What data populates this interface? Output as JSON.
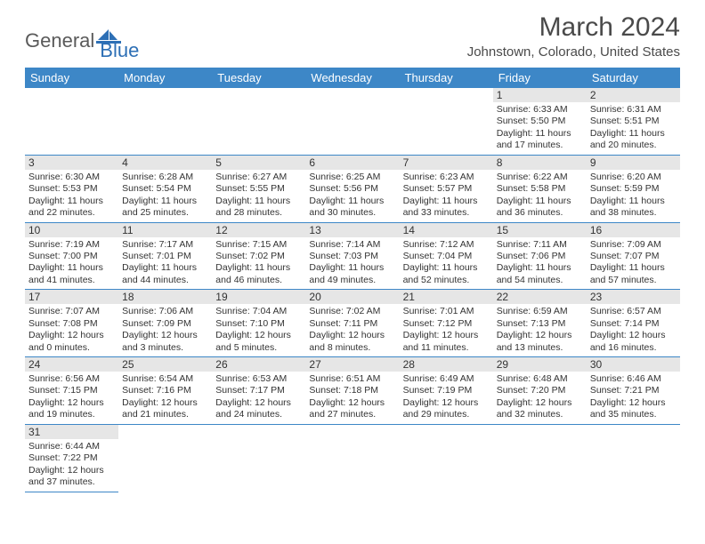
{
  "brand": {
    "part1": "General",
    "part2": "Blue"
  },
  "title": "March 2024",
  "location": "Johnstown, Colorado, United States",
  "colors": {
    "header_bg": "#3d87c7",
    "header_fg": "#ffffff",
    "daynum_bg": "#e6e6e6",
    "border": "#3d87c7",
    "text": "#333333",
    "logo_gray": "#5a5a5a",
    "logo_blue": "#2d6fb5"
  },
  "weekdays": [
    "Sunday",
    "Monday",
    "Tuesday",
    "Wednesday",
    "Thursday",
    "Friday",
    "Saturday"
  ],
  "weeks": [
    [
      null,
      null,
      null,
      null,
      null,
      {
        "d": "1",
        "sr": "6:33 AM",
        "ss": "5:50 PM",
        "dl": "11 hours and 17 minutes."
      },
      {
        "d": "2",
        "sr": "6:31 AM",
        "ss": "5:51 PM",
        "dl": "11 hours and 20 minutes."
      }
    ],
    [
      {
        "d": "3",
        "sr": "6:30 AM",
        "ss": "5:53 PM",
        "dl": "11 hours and 22 minutes."
      },
      {
        "d": "4",
        "sr": "6:28 AM",
        "ss": "5:54 PM",
        "dl": "11 hours and 25 minutes."
      },
      {
        "d": "5",
        "sr": "6:27 AM",
        "ss": "5:55 PM",
        "dl": "11 hours and 28 minutes."
      },
      {
        "d": "6",
        "sr": "6:25 AM",
        "ss": "5:56 PM",
        "dl": "11 hours and 30 minutes."
      },
      {
        "d": "7",
        "sr": "6:23 AM",
        "ss": "5:57 PM",
        "dl": "11 hours and 33 minutes."
      },
      {
        "d": "8",
        "sr": "6:22 AM",
        "ss": "5:58 PM",
        "dl": "11 hours and 36 minutes."
      },
      {
        "d": "9",
        "sr": "6:20 AM",
        "ss": "5:59 PM",
        "dl": "11 hours and 38 minutes."
      }
    ],
    [
      {
        "d": "10",
        "sr": "7:19 AM",
        "ss": "7:00 PM",
        "dl": "11 hours and 41 minutes."
      },
      {
        "d": "11",
        "sr": "7:17 AM",
        "ss": "7:01 PM",
        "dl": "11 hours and 44 minutes."
      },
      {
        "d": "12",
        "sr": "7:15 AM",
        "ss": "7:02 PM",
        "dl": "11 hours and 46 minutes."
      },
      {
        "d": "13",
        "sr": "7:14 AM",
        "ss": "7:03 PM",
        "dl": "11 hours and 49 minutes."
      },
      {
        "d": "14",
        "sr": "7:12 AM",
        "ss": "7:04 PM",
        "dl": "11 hours and 52 minutes."
      },
      {
        "d": "15",
        "sr": "7:11 AM",
        "ss": "7:06 PM",
        "dl": "11 hours and 54 minutes."
      },
      {
        "d": "16",
        "sr": "7:09 AM",
        "ss": "7:07 PM",
        "dl": "11 hours and 57 minutes."
      }
    ],
    [
      {
        "d": "17",
        "sr": "7:07 AM",
        "ss": "7:08 PM",
        "dl": "12 hours and 0 minutes."
      },
      {
        "d": "18",
        "sr": "7:06 AM",
        "ss": "7:09 PM",
        "dl": "12 hours and 3 minutes."
      },
      {
        "d": "19",
        "sr": "7:04 AM",
        "ss": "7:10 PM",
        "dl": "12 hours and 5 minutes."
      },
      {
        "d": "20",
        "sr": "7:02 AM",
        "ss": "7:11 PM",
        "dl": "12 hours and 8 minutes."
      },
      {
        "d": "21",
        "sr": "7:01 AM",
        "ss": "7:12 PM",
        "dl": "12 hours and 11 minutes."
      },
      {
        "d": "22",
        "sr": "6:59 AM",
        "ss": "7:13 PM",
        "dl": "12 hours and 13 minutes."
      },
      {
        "d": "23",
        "sr": "6:57 AM",
        "ss": "7:14 PM",
        "dl": "12 hours and 16 minutes."
      }
    ],
    [
      {
        "d": "24",
        "sr": "6:56 AM",
        "ss": "7:15 PM",
        "dl": "12 hours and 19 minutes."
      },
      {
        "d": "25",
        "sr": "6:54 AM",
        "ss": "7:16 PM",
        "dl": "12 hours and 21 minutes."
      },
      {
        "d": "26",
        "sr": "6:53 AM",
        "ss": "7:17 PM",
        "dl": "12 hours and 24 minutes."
      },
      {
        "d": "27",
        "sr": "6:51 AM",
        "ss": "7:18 PM",
        "dl": "12 hours and 27 minutes."
      },
      {
        "d": "28",
        "sr": "6:49 AM",
        "ss": "7:19 PM",
        "dl": "12 hours and 29 minutes."
      },
      {
        "d": "29",
        "sr": "6:48 AM",
        "ss": "7:20 PM",
        "dl": "12 hours and 32 minutes."
      },
      {
        "d": "30",
        "sr": "6:46 AM",
        "ss": "7:21 PM",
        "dl": "12 hours and 35 minutes."
      }
    ],
    [
      {
        "d": "31",
        "sr": "6:44 AM",
        "ss": "7:22 PM",
        "dl": "12 hours and 37 minutes."
      },
      null,
      null,
      null,
      null,
      null,
      null
    ]
  ],
  "labels": {
    "sunrise": "Sunrise:",
    "sunset": "Sunset:",
    "daylight": "Daylight:"
  }
}
